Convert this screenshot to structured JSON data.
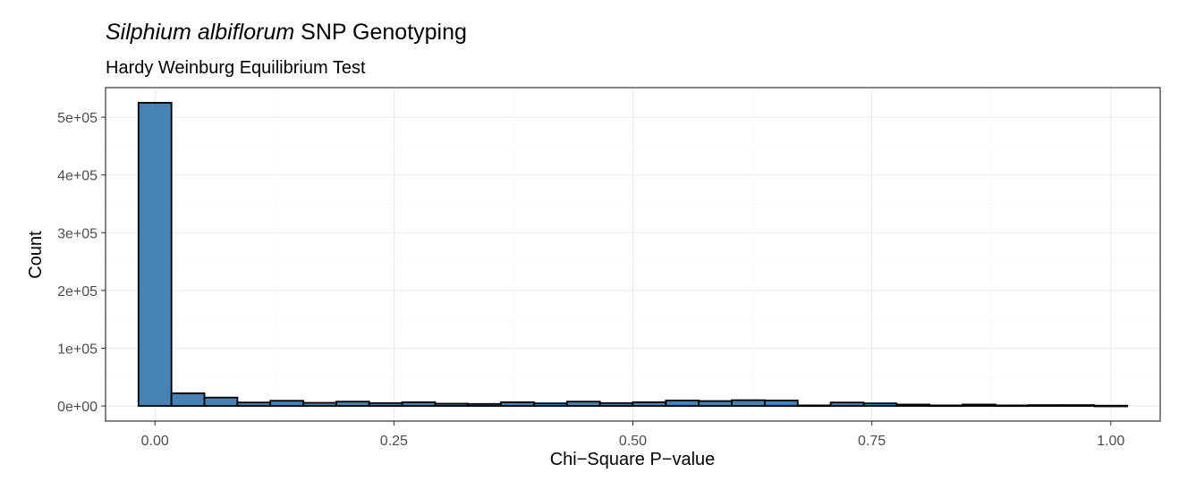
{
  "chart_data": {
    "type": "bar",
    "title_italic": "Silphium albiflorum",
    "title_rest": " SNP Genotyping",
    "subtitle": "Hardy Weinburg Equilibrium Test",
    "xlabel": "Chi−Square P−value",
    "ylabel": "Count",
    "xlim": [
      -0.0517,
      1.0517
    ],
    "ylim": [
      -26250,
      551250
    ],
    "x_ticks": [
      0,
      0.25,
      0.5,
      0.75,
      1
    ],
    "x_tick_labels": [
      "0.00",
      "0.25",
      "0.50",
      "0.75",
      "1.00"
    ],
    "y_ticks": [
      0,
      100000,
      200000,
      300000,
      400000,
      500000
    ],
    "y_tick_labels": [
      "0e+00",
      "1e+05",
      "2e+05",
      "3e+05",
      "4e+05",
      "5e+05"
    ],
    "grid": true,
    "fill_color": "#4682B4",
    "outline_color": "#000000",
    "bin_width": 0.0345,
    "bins": [
      {
        "x": 0.0,
        "count": 525000
      },
      {
        "x": 0.0345,
        "count": 22000
      },
      {
        "x": 0.069,
        "count": 14500
      },
      {
        "x": 0.1034,
        "count": 6000
      },
      {
        "x": 0.1379,
        "count": 9000
      },
      {
        "x": 0.1724,
        "count": 5500
      },
      {
        "x": 0.2069,
        "count": 7500
      },
      {
        "x": 0.2414,
        "count": 5000
      },
      {
        "x": 0.2759,
        "count": 6500
      },
      {
        "x": 0.3103,
        "count": 4000
      },
      {
        "x": 0.3448,
        "count": 3500
      },
      {
        "x": 0.3793,
        "count": 6500
      },
      {
        "x": 0.4138,
        "count": 4500
      },
      {
        "x": 0.4483,
        "count": 7500
      },
      {
        "x": 0.4828,
        "count": 5000
      },
      {
        "x": 0.5172,
        "count": 6500
      },
      {
        "x": 0.5517,
        "count": 9500
      },
      {
        "x": 0.5862,
        "count": 8500
      },
      {
        "x": 0.6207,
        "count": 10000
      },
      {
        "x": 0.6552,
        "count": 9500
      },
      {
        "x": 0.6897,
        "count": 1000
      },
      {
        "x": 0.7241,
        "count": 6000
      },
      {
        "x": 0.7586,
        "count": 4500
      },
      {
        "x": 0.7931,
        "count": 2500
      },
      {
        "x": 0.8276,
        "count": 1000
      },
      {
        "x": 0.8621,
        "count": 2500
      },
      {
        "x": 0.8966,
        "count": 1000
      },
      {
        "x": 0.931,
        "count": 1500
      },
      {
        "x": 0.9655,
        "count": 1500
      },
      {
        "x": 1.0,
        "count": 500
      }
    ]
  }
}
